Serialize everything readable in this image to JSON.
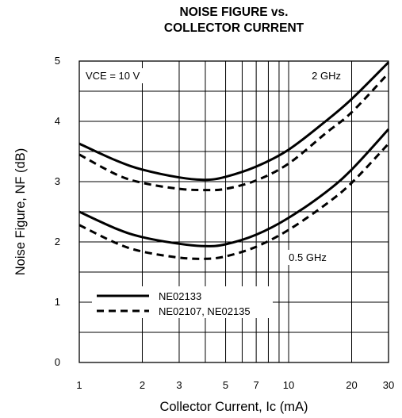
{
  "title": {
    "line1": "NOISE FIGURE vs.",
    "line2": "COLLECTOR CURRENT"
  },
  "chart_data": {
    "type": "line",
    "title": "NOISE FIGURE vs. COLLECTOR CURRENT",
    "xlabel": "Collector Current, Ic (mA)",
    "ylabel": "Noise Figure, NF (dB)",
    "x_scale": "log",
    "xlim": [
      1,
      30
    ],
    "ylim": [
      0,
      5
    ],
    "x_ticks": [
      1,
      2,
      3,
      5,
      7,
      10,
      20,
      30
    ],
    "x_tick_labels": [
      "1",
      "2",
      "3",
      "5",
      "7",
      "10",
      "20",
      "30"
    ],
    "y_ticks": [
      0,
      1,
      2,
      3,
      4,
      5
    ],
    "y_tick_labels": [
      "0",
      "1",
      "2",
      "3",
      "4",
      "5"
    ],
    "grid": true,
    "annotations": {
      "condition": "VCE = 10 V",
      "freq_high": "2 GHz",
      "freq_low": "0.5 GHz"
    },
    "legend": {
      "placement": "lower-left",
      "entries": [
        {
          "label": "NE02133",
          "style": "solid"
        },
        {
          "label": "NE02107, NE02135",
          "style": "dashed"
        }
      ]
    },
    "series": [
      {
        "device": "NE02133",
        "frequency": "2 GHz",
        "style": "solid",
        "x": [
          1,
          1.5,
          2,
          3,
          4,
          5,
          7,
          10,
          15,
          20,
          30
        ],
        "y": [
          3.63,
          3.35,
          3.2,
          3.07,
          3.03,
          3.08,
          3.25,
          3.53,
          4.0,
          4.37,
          4.98
        ]
      },
      {
        "device": "NE02107, NE02135",
        "frequency": "2 GHz",
        "style": "dashed",
        "x": [
          1,
          1.5,
          2,
          3,
          4,
          5,
          7,
          10,
          15,
          20,
          30
        ],
        "y": [
          3.45,
          3.12,
          2.98,
          2.88,
          2.86,
          2.88,
          3.02,
          3.3,
          3.8,
          4.15,
          4.8
        ]
      },
      {
        "device": "NE02133",
        "frequency": "0.5 GHz",
        "style": "solid",
        "x": [
          1,
          1.5,
          2,
          3,
          4,
          5,
          7,
          10,
          15,
          20,
          30
        ],
        "y": [
          2.5,
          2.22,
          2.08,
          1.97,
          1.93,
          1.96,
          2.12,
          2.4,
          2.82,
          3.2,
          3.87
        ]
      },
      {
        "device": "NE02107, NE02135",
        "frequency": "0.5 GHz",
        "style": "dashed",
        "x": [
          1,
          1.5,
          2,
          3,
          4,
          5,
          7,
          10,
          15,
          20,
          30
        ],
        "y": [
          2.28,
          1.98,
          1.84,
          1.74,
          1.72,
          1.76,
          1.92,
          2.2,
          2.62,
          2.98,
          3.63
        ]
      }
    ]
  },
  "colors": {
    "line": "#000000",
    "grid": "#000000",
    "legend_bg": "#ffffff"
  }
}
